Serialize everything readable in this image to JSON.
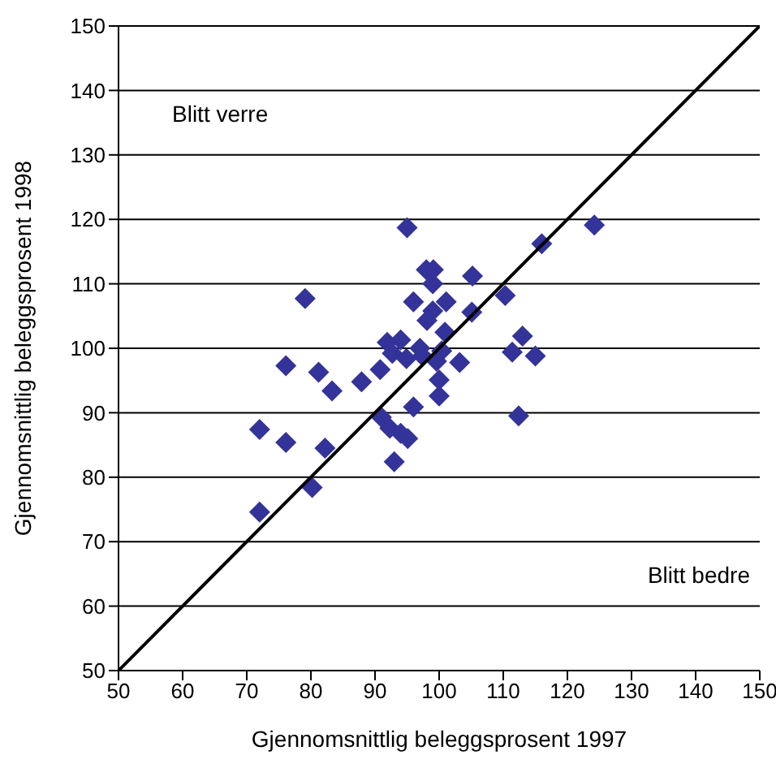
{
  "chart_data": {
    "type": "scatter",
    "xlabel": "Gjennomsnittlig beleggsprosent 1997",
    "ylabel": "Gjennomsnittlig beleggsprosent 1998",
    "xlim": [
      50,
      150
    ],
    "ylim": [
      50,
      150
    ],
    "xticks": [
      50,
      60,
      70,
      80,
      90,
      100,
      110,
      120,
      130,
      140,
      150
    ],
    "yticks": [
      50,
      60,
      70,
      80,
      90,
      100,
      110,
      120,
      130,
      140,
      150
    ],
    "grid": "y",
    "marker": "diamond",
    "annotations": [
      "Blitt verre",
      "Blitt bedre"
    ],
    "series": [
      {
        "type": "scatter",
        "color": "#333399",
        "x": [
          124.2,
          116.0,
          110.3,
          113.0,
          111.4,
          115.0,
          112.4,
          95.0,
          79.1,
          98.0,
          99.1,
          99.0,
          105.2,
          96.0,
          101.1,
          99.0,
          98.1,
          105.1,
          100.9,
          91.9,
          94.0,
          92.7,
          94.9,
          97.0,
          97.4,
          99.6,
          100.4,
          103.2,
          76.1,
          81.2,
          83.3,
          87.9,
          90.8,
          100.0,
          100.0,
          96.0,
          91.0,
          92.3,
          94.0,
          95.1,
          72.0,
          76.1,
          82.2,
          93.0,
          80.2,
          72.0
        ],
        "values": [
          119.1,
          116.2,
          108.2,
          101.9,
          99.4,
          98.8,
          89.5,
          118.7,
          107.7,
          112.2,
          112.2,
          110.0,
          111.2,
          107.2,
          107.2,
          105.8,
          104.3,
          105.6,
          102.5,
          100.9,
          101.3,
          99.2,
          98.4,
          100.0,
          98.8,
          98.0,
          99.6,
          97.8,
          97.3,
          96.3,
          93.4,
          94.8,
          96.7,
          95.1,
          92.6,
          90.9,
          89.3,
          87.6,
          86.8,
          86.0,
          87.4,
          85.4,
          84.5,
          82.4,
          78.4,
          74.6
        ]
      },
      {
        "type": "line",
        "color": "#000000",
        "x": [
          50,
          150
        ],
        "values": [
          50,
          150
        ],
        "marker": "none"
      }
    ]
  }
}
